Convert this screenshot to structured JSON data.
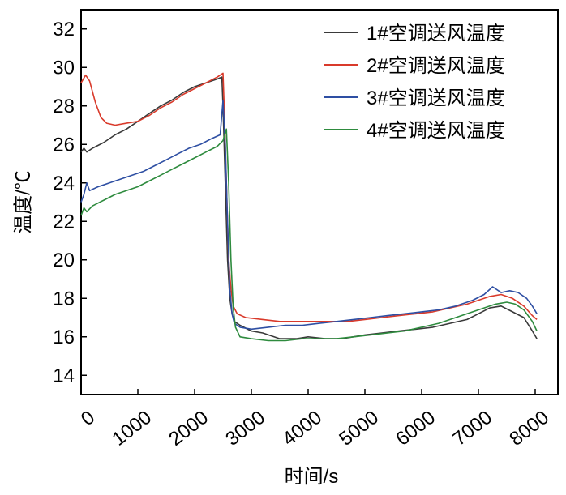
{
  "chart_data": {
    "type": "line",
    "title": "",
    "xlabel": "时间/s",
    "ylabel": "温度/℃",
    "xlim": [
      0,
      8400
    ],
    "ylim": [
      13,
      33
    ],
    "x_ticks": [
      0,
      1000,
      2000,
      3000,
      4000,
      5000,
      6000,
      7000,
      8000
    ],
    "y_ticks": [
      14,
      16,
      18,
      20,
      22,
      24,
      26,
      28,
      30,
      32
    ],
    "grid": false,
    "legend_position": "top-right",
    "series": [
      {
        "name": "1#空调送风温度",
        "color": "#3a3a3a",
        "points": [
          [
            0,
            25.6
          ],
          [
            50,
            25.8
          ],
          [
            100,
            25.6
          ],
          [
            200,
            25.8
          ],
          [
            400,
            26.1
          ],
          [
            600,
            26.5
          ],
          [
            800,
            26.8
          ],
          [
            1000,
            27.2
          ],
          [
            1200,
            27.6
          ],
          [
            1400,
            28.0
          ],
          [
            1600,
            28.3
          ],
          [
            1800,
            28.7
          ],
          [
            2000,
            29.0
          ],
          [
            2200,
            29.2
          ],
          [
            2400,
            29.4
          ],
          [
            2480,
            29.5
          ],
          [
            2500,
            28.0
          ],
          [
            2540,
            24.0
          ],
          [
            2580,
            20.0
          ],
          [
            2620,
            18.0
          ],
          [
            2660,
            17.2
          ],
          [
            2700,
            16.8
          ],
          [
            2800,
            16.6
          ],
          [
            3000,
            16.3
          ],
          [
            3200,
            16.2
          ],
          [
            3500,
            15.9
          ],
          [
            3800,
            15.9
          ],
          [
            4000,
            16.0
          ],
          [
            4300,
            15.9
          ],
          [
            4600,
            15.9
          ],
          [
            5000,
            16.1
          ],
          [
            5300,
            16.2
          ],
          [
            5600,
            16.3
          ],
          [
            5900,
            16.4
          ],
          [
            6200,
            16.5
          ],
          [
            6500,
            16.7
          ],
          [
            6800,
            16.9
          ],
          [
            7000,
            17.2
          ],
          [
            7200,
            17.5
          ],
          [
            7400,
            17.6
          ],
          [
            7600,
            17.3
          ],
          [
            7800,
            17.0
          ],
          [
            7950,
            16.3
          ],
          [
            8030,
            15.9
          ]
        ]
      },
      {
        "name": "2#空调送风温度",
        "color": "#d93a2b",
        "points": [
          [
            0,
            29.2
          ],
          [
            80,
            29.6
          ],
          [
            150,
            29.3
          ],
          [
            250,
            28.2
          ],
          [
            350,
            27.4
          ],
          [
            450,
            27.1
          ],
          [
            600,
            27.0
          ],
          [
            800,
            27.1
          ],
          [
            1000,
            27.2
          ],
          [
            1200,
            27.5
          ],
          [
            1400,
            27.9
          ],
          [
            1600,
            28.2
          ],
          [
            1800,
            28.6
          ],
          [
            2000,
            28.9
          ],
          [
            2200,
            29.2
          ],
          [
            2400,
            29.5
          ],
          [
            2500,
            29.7
          ],
          [
            2520,
            28.0
          ],
          [
            2560,
            24.0
          ],
          [
            2600,
            20.0
          ],
          [
            2640,
            18.5
          ],
          [
            2680,
            17.6
          ],
          [
            2750,
            17.2
          ],
          [
            2900,
            17.0
          ],
          [
            3200,
            16.9
          ],
          [
            3500,
            16.8
          ],
          [
            3800,
            16.8
          ],
          [
            4100,
            16.8
          ],
          [
            4400,
            16.8
          ],
          [
            4700,
            16.8
          ],
          [
            5000,
            16.9
          ],
          [
            5300,
            17.0
          ],
          [
            5600,
            17.1
          ],
          [
            5900,
            17.2
          ],
          [
            6200,
            17.3
          ],
          [
            6500,
            17.5
          ],
          [
            6800,
            17.7
          ],
          [
            7000,
            17.9
          ],
          [
            7200,
            18.1
          ],
          [
            7400,
            18.2
          ],
          [
            7600,
            18.0
          ],
          [
            7800,
            17.6
          ],
          [
            7950,
            17.1
          ],
          [
            8030,
            16.9
          ]
        ]
      },
      {
        "name": "3#空调送风温度",
        "color": "#2e4fa3",
        "points": [
          [
            0,
            23.0
          ],
          [
            50,
            23.4
          ],
          [
            100,
            24.0
          ],
          [
            150,
            23.6
          ],
          [
            300,
            23.8
          ],
          [
            500,
            24.0
          ],
          [
            700,
            24.2
          ],
          [
            900,
            24.4
          ],
          [
            1100,
            24.6
          ],
          [
            1300,
            24.9
          ],
          [
            1500,
            25.2
          ],
          [
            1700,
            25.5
          ],
          [
            1900,
            25.8
          ],
          [
            2100,
            26.0
          ],
          [
            2300,
            26.3
          ],
          [
            2450,
            26.5
          ],
          [
            2500,
            28.3
          ],
          [
            2540,
            26.0
          ],
          [
            2580,
            22.0
          ],
          [
            2620,
            18.5
          ],
          [
            2660,
            17.2
          ],
          [
            2700,
            16.7
          ],
          [
            2800,
            16.5
          ],
          [
            3000,
            16.4
          ],
          [
            3300,
            16.5
          ],
          [
            3600,
            16.6
          ],
          [
            3900,
            16.6
          ],
          [
            4200,
            16.7
          ],
          [
            4500,
            16.8
          ],
          [
            4800,
            16.9
          ],
          [
            5100,
            17.0
          ],
          [
            5400,
            17.1
          ],
          [
            5700,
            17.2
          ],
          [
            6000,
            17.3
          ],
          [
            6300,
            17.4
          ],
          [
            6600,
            17.6
          ],
          [
            6900,
            17.9
          ],
          [
            7100,
            18.2
          ],
          [
            7250,
            18.6
          ],
          [
            7400,
            18.3
          ],
          [
            7550,
            18.4
          ],
          [
            7700,
            18.3
          ],
          [
            7850,
            18.0
          ],
          [
            7950,
            17.6
          ],
          [
            8030,
            17.2
          ]
        ]
      },
      {
        "name": "4#空调送风温度",
        "color": "#2e8b3e",
        "points": [
          [
            0,
            22.3
          ],
          [
            50,
            22.7
          ],
          [
            100,
            22.5
          ],
          [
            200,
            22.8
          ],
          [
            400,
            23.1
          ],
          [
            600,
            23.4
          ],
          [
            800,
            23.6
          ],
          [
            1000,
            23.8
          ],
          [
            1200,
            24.1
          ],
          [
            1400,
            24.4
          ],
          [
            1600,
            24.7
          ],
          [
            1800,
            25.0
          ],
          [
            2000,
            25.3
          ],
          [
            2200,
            25.6
          ],
          [
            2400,
            25.9
          ],
          [
            2500,
            26.2
          ],
          [
            2560,
            26.8
          ],
          [
            2600,
            24.0
          ],
          [
            2640,
            20.0
          ],
          [
            2680,
            17.5
          ],
          [
            2720,
            16.5
          ],
          [
            2800,
            16.0
          ],
          [
            3000,
            15.9
          ],
          [
            3300,
            15.8
          ],
          [
            3600,
            15.8
          ],
          [
            3900,
            15.9
          ],
          [
            4200,
            15.9
          ],
          [
            4500,
            15.9
          ],
          [
            4800,
            16.0
          ],
          [
            5100,
            16.1
          ],
          [
            5400,
            16.2
          ],
          [
            5700,
            16.3
          ],
          [
            6000,
            16.5
          ],
          [
            6300,
            16.7
          ],
          [
            6600,
            17.0
          ],
          [
            6900,
            17.3
          ],
          [
            7100,
            17.5
          ],
          [
            7300,
            17.7
          ],
          [
            7500,
            17.8
          ],
          [
            7650,
            17.7
          ],
          [
            7800,
            17.4
          ],
          [
            7950,
            16.8
          ],
          [
            8030,
            16.3
          ]
        ]
      }
    ]
  }
}
